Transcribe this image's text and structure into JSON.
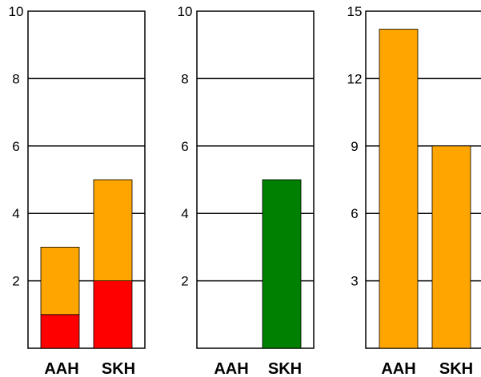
{
  "chart_data": [
    {
      "type": "bar",
      "stacked": true,
      "categories": [
        "AAH",
        "SKH"
      ],
      "series": [
        {
          "values": [
            1,
            2
          ],
          "color": "#ff0000"
        },
        {
          "values": [
            2,
            3
          ],
          "color": "#ffa500"
        }
      ],
      "ylim": [
        0,
        10
      ],
      "yticks": [
        2,
        4,
        6,
        8,
        10
      ],
      "grid": true
    },
    {
      "type": "bar",
      "categories": [
        "AAH",
        "SKH"
      ],
      "series": [
        {
          "values": [
            0,
            5
          ],
          "color": "#008000"
        }
      ],
      "ylim": [
        0,
        10
      ],
      "yticks": [
        2,
        4,
        6,
        8,
        10
      ],
      "grid": true
    },
    {
      "type": "bar",
      "categories": [
        "AAH",
        "SKH"
      ],
      "series": [
        {
          "values": [
            14.2,
            9
          ],
          "color": "#ffa500"
        },
        {
          "values": [
            0,
            9
          ],
          "color": "#008000"
        }
      ],
      "ylim": [
        0,
        15
      ],
      "yticks": [
        3,
        6,
        9,
        12,
        15
      ],
      "grid": true
    }
  ]
}
